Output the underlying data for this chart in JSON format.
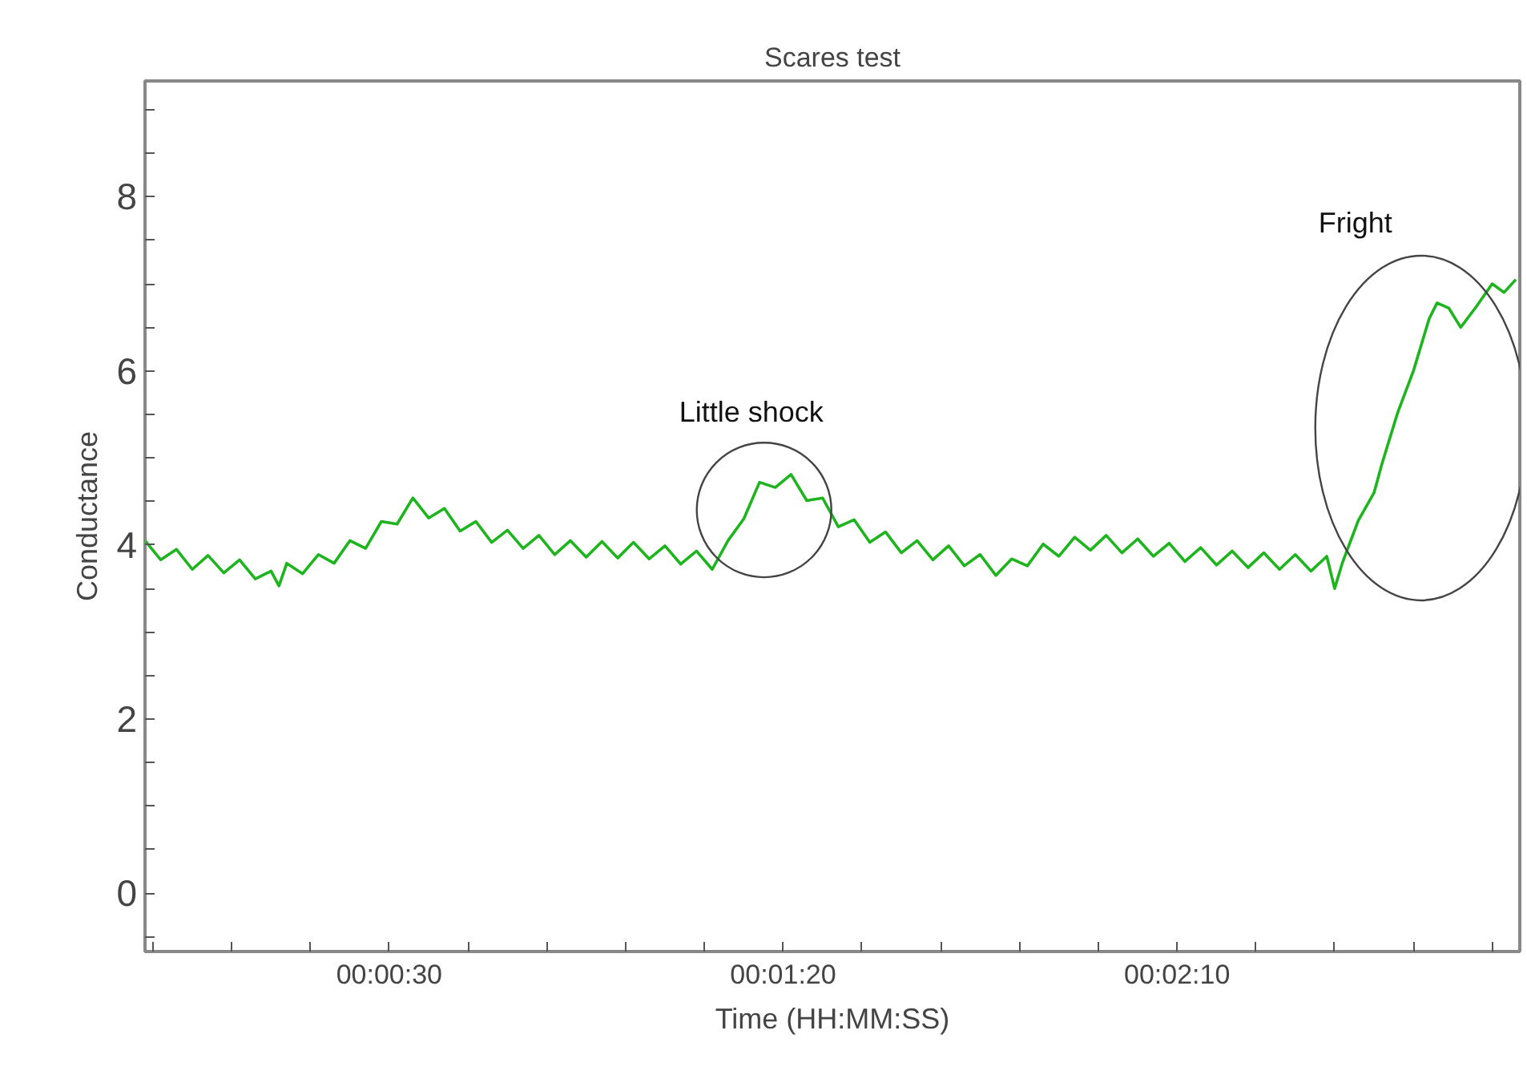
{
  "chart_data": {
    "type": "line",
    "title": "Scares test",
    "xlabel": "Time (HH:MM:SS)",
    "ylabel": "Conductance",
    "xlim": [
      -1,
      173.5
    ],
    "ylim": [
      -0.67,
      9.33
    ],
    "xticks": [
      {
        "value": 0,
        "label": null
      },
      {
        "value": 10,
        "label": null
      },
      {
        "value": 20,
        "label": null
      },
      {
        "value": 30,
        "label": "00:00:30"
      },
      {
        "value": 40,
        "label": null
      },
      {
        "value": 50,
        "label": null
      },
      {
        "value": 60,
        "label": null
      },
      {
        "value": 70,
        "label": null
      },
      {
        "value": 80,
        "label": "00:01:20"
      },
      {
        "value": 90,
        "label": null
      },
      {
        "value": 100,
        "label": null
      },
      {
        "value": 110,
        "label": null
      },
      {
        "value": 120,
        "label": null
      },
      {
        "value": 130,
        "label": "00:02:10"
      },
      {
        "value": 140,
        "label": null
      },
      {
        "value": 150,
        "label": null
      },
      {
        "value": 160,
        "label": null
      },
      {
        "value": 170,
        "label": null
      }
    ],
    "yticks": [
      {
        "value": -0.5,
        "label": null
      },
      0,
      {
        "value": 0.5,
        "label": null
      },
      {
        "value": 1,
        "label": null
      },
      {
        "value": 1.5,
        "label": null
      },
      2,
      {
        "value": 2.5,
        "label": null
      },
      {
        "value": 3,
        "label": null
      },
      {
        "value": 3.5,
        "label": null
      },
      4,
      {
        "value": 4.5,
        "label": null
      },
      {
        "value": 5,
        "label": null
      },
      {
        "value": 5.5,
        "label": null
      },
      6,
      {
        "value": 6.5,
        "label": null
      },
      {
        "value": 7,
        "label": null
      },
      {
        "value": 7.5,
        "label": null
      },
      8,
      {
        "value": 8.5,
        "label": null
      },
      {
        "value": 9,
        "label": null
      }
    ],
    "grid": false,
    "marker": "none",
    "line_style": "solid",
    "series": [
      {
        "color": "#1eb41e",
        "x": [
          -1,
          1,
          3,
          5,
          7,
          9,
          11,
          13,
          15,
          16,
          17,
          19,
          21,
          23,
          25,
          27,
          29,
          31,
          33,
          35,
          37,
          39,
          41,
          43,
          45,
          47,
          49,
          51,
          53,
          55,
          57,
          59,
          61,
          63,
          65,
          67,
          69,
          71,
          73,
          75,
          77,
          79,
          81,
          83,
          85,
          87,
          89,
          91,
          93,
          95,
          97,
          99,
          101,
          103,
          105,
          107,
          109,
          111,
          113,
          115,
          117,
          119,
          121,
          123,
          125,
          127,
          129,
          131,
          133,
          135,
          137,
          139,
          141,
          143,
          145,
          147,
          149,
          150,
          151,
          152,
          153,
          155,
          156,
          158,
          160,
          162,
          163,
          164.5,
          166,
          168,
          170,
          171.5,
          173
        ],
        "values": [
          4.05,
          3.83,
          3.95,
          3.72,
          3.88,
          3.68,
          3.83,
          3.61,
          3.7,
          3.53,
          3.79,
          3.67,
          3.89,
          3.79,
          4.05,
          3.96,
          4.27,
          4.24,
          4.54,
          4.31,
          4.42,
          4.16,
          4.27,
          4.03,
          4.17,
          3.96,
          4.11,
          3.89,
          4.05,
          3.86,
          4.04,
          3.85,
          4.03,
          3.84,
          3.99,
          3.78,
          3.93,
          3.72,
          4.05,
          4.3,
          4.72,
          4.66,
          4.81,
          4.51,
          4.54,
          4.21,
          4.29,
          4.03,
          4.15,
          3.91,
          4.05,
          3.83,
          3.99,
          3.76,
          3.89,
          3.65,
          3.84,
          3.76,
          4.01,
          3.87,
          4.09,
          3.94,
          4.11,
          3.91,
          4.07,
          3.87,
          4.02,
          3.81,
          3.97,
          3.77,
          3.93,
          3.74,
          3.91,
          3.72,
          3.89,
          3.7,
          3.87,
          3.5,
          3.8,
          4.04,
          4.28,
          4.6,
          4.93,
          5.52,
          6.0,
          6.6,
          6.78,
          6.72,
          6.5,
          6.74,
          7.0,
          6.9,
          7.05
        ]
      }
    ],
    "annotations": [
      {
        "text": "Little shock",
        "x": 79,
        "y": 4.66
      },
      {
        "text": "Fright",
        "x": 163,
        "y": 6.78
      }
    ]
  }
}
